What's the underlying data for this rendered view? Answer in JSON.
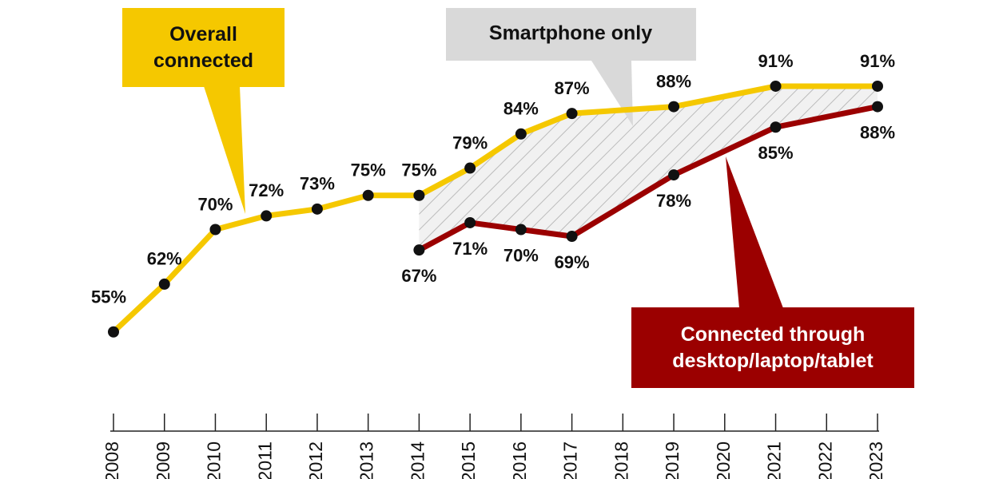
{
  "chart_data": {
    "type": "line",
    "series": [
      {
        "name": "Overall connected",
        "color": "#f5c800",
        "x": [
          2008,
          2009,
          2010,
          2011,
          2012,
          2013,
          2014,
          2015,
          2016,
          2017,
          2019,
          2021,
          2023
        ],
        "values": [
          55,
          62,
          70,
          72,
          73,
          75,
          75,
          79,
          84,
          87,
          88,
          91,
          91
        ],
        "value_labels": [
          "55%",
          "62%",
          "70%",
          "72%",
          "73%",
          "75%",
          "75%",
          "79%",
          "84%",
          "87%",
          "88%",
          "91%",
          "91%"
        ]
      },
      {
        "name": "Connected through desktop/laptop/tablet",
        "color": "#9b0000",
        "x": [
          2014,
          2015,
          2016,
          2017,
          2019,
          2021,
          2023
        ],
        "values": [
          67,
          71,
          70,
          69,
          78,
          85,
          88
        ],
        "value_labels": [
          "67%",
          "71%",
          "70%",
          "69%",
          "78%",
          "85%",
          "88%"
        ]
      }
    ],
    "gap_label": "Smartphone only",
    "xlim": [
      2008,
      2023
    ],
    "xticks": [
      2008,
      2009,
      2010,
      2011,
      2012,
      2013,
      2014,
      2015,
      2016,
      2017,
      2018,
      2019,
      2020,
      2021,
      2022,
      2023
    ],
    "ylim": [
      40,
      100
    ]
  }
}
